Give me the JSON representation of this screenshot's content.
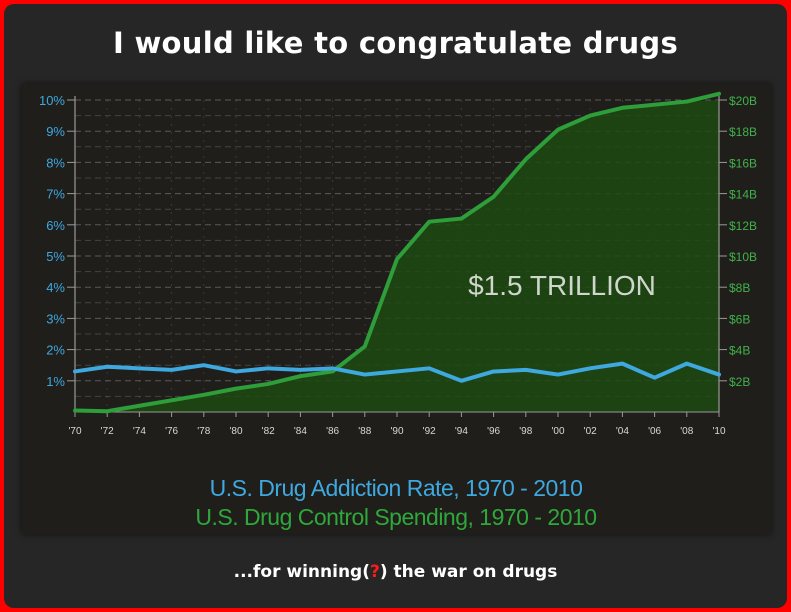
{
  "title": "I would like to congratulate drugs",
  "caption": {
    "before": "...for winning(",
    "mark": "?",
    "after": ") the war on drugs"
  },
  "colors": {
    "addiction": "#3ea8df",
    "spending": "#2e9e3a",
    "fill": "#1f4a12",
    "grid": "#8a8a8a"
  },
  "chart_data": {
    "type": "line",
    "annotation": "$1.5 TRILLION",
    "grid": true,
    "x_ticks": [
      "'70",
      "'72",
      "'74",
      "'76",
      "'78",
      "'80",
      "'82",
      "'84",
      "'86",
      "'88",
      "'90",
      "'92",
      "'94",
      "'96",
      "'98",
      "'00",
      "'02",
      "'04",
      "'06",
      "'08",
      "'10"
    ],
    "y_left": {
      "range": [
        0,
        10
      ],
      "ticks": [
        {
          "value": 1,
          "label": "1%"
        },
        {
          "value": 2,
          "label": "2%"
        },
        {
          "value": 3,
          "label": "3%"
        },
        {
          "value": 4,
          "label": "4%"
        },
        {
          "value": 5,
          "label": "5%"
        },
        {
          "value": 6,
          "label": "6%"
        },
        {
          "value": 7,
          "label": "7%"
        },
        {
          "value": 8,
          "label": "8%"
        },
        {
          "value": 9,
          "label": "9%"
        },
        {
          "value": 10,
          "label": "10%"
        }
      ]
    },
    "y_right": {
      "range": [
        0,
        20
      ],
      "ticks": [
        {
          "value": 2,
          "label": "$2B"
        },
        {
          "value": 4,
          "label": "$4B"
        },
        {
          "value": 6,
          "label": "$6B"
        },
        {
          "value": 8,
          "label": "$8B"
        },
        {
          "value": 10,
          "label": "$10B"
        },
        {
          "value": 12,
          "label": "$12B"
        },
        {
          "value": 14,
          "label": "$14B"
        },
        {
          "value": 16,
          "label": "$16B"
        },
        {
          "value": 18,
          "label": "$18B"
        },
        {
          "value": 20,
          "label": "$20B"
        }
      ]
    },
    "series": [
      {
        "name": "U.S. Drug Addiction Rate, 1970 - 2010",
        "axis": "left",
        "x": [
          1970,
          1972,
          1974,
          1976,
          1978,
          1980,
          1982,
          1984,
          1986,
          1988,
          1990,
          1992,
          1994,
          1996,
          1998,
          2000,
          2002,
          2004,
          2006,
          2008,
          2010
        ],
        "values": [
          1.3,
          1.45,
          1.4,
          1.35,
          1.5,
          1.3,
          1.4,
          1.35,
          1.4,
          1.2,
          1.3,
          1.4,
          1.0,
          1.3,
          1.35,
          1.2,
          1.4,
          1.55,
          1.1,
          1.55,
          1.2
        ]
      },
      {
        "name": "U.S. Drug Control Spending, 1970 - 2010",
        "axis": "right",
        "x": [
          1970,
          1972,
          1974,
          1976,
          1978,
          1980,
          1982,
          1984,
          1986,
          1988,
          1990,
          1992,
          1994,
          1996,
          1998,
          2000,
          2002,
          2004,
          2006,
          2008,
          2010
        ],
        "values": [
          0.1,
          0.05,
          0.4,
          0.75,
          1.1,
          1.5,
          1.8,
          2.3,
          2.6,
          4.2,
          9.8,
          12.2,
          12.4,
          13.8,
          16.2,
          18.1,
          19.0,
          19.5,
          19.7,
          19.9,
          20.4
        ]
      }
    ]
  }
}
